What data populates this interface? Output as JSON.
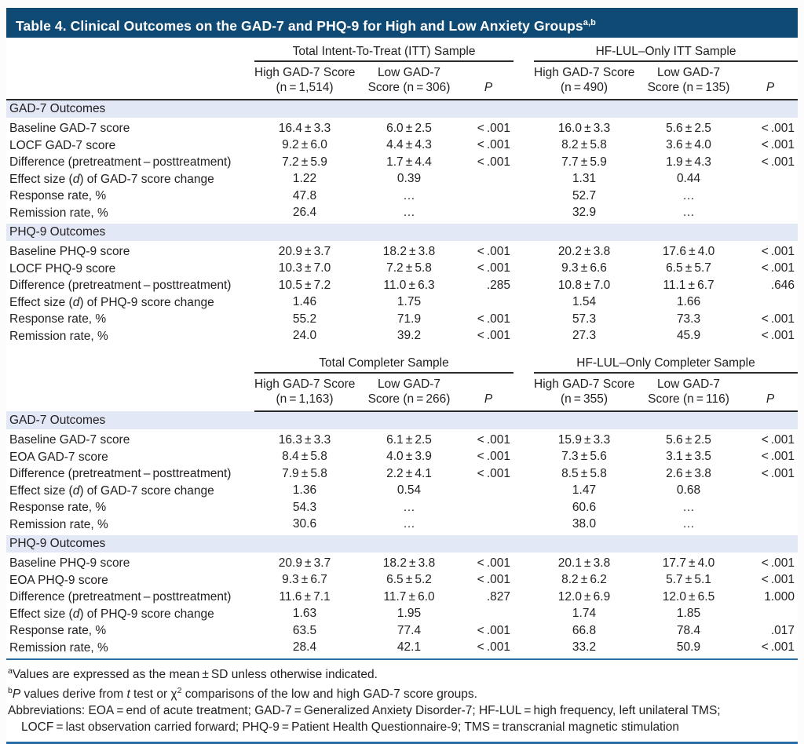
{
  "title": {
    "text": "Table 4. Clinical Outcomes on the GAD-7 and PHQ-9 for High and Low Anxiety Groups",
    "sup": "a,b"
  },
  "colors": {
    "title_bar": "#0f4a75",
    "section_band": "#e3e8f6",
    "rule_dark": "#2b2b2b",
    "rule_blue": "#2a6ca5",
    "text": "#231f20"
  },
  "panels": [
    {
      "groups": [
        "Total Intent-To-Treat (ITT) Sample",
        "HF-LUL–Only ITT Sample"
      ],
      "columns": [
        {
          "line1": "High GAD-7 Score",
          "line2": "(n = 1,514)"
        },
        {
          "line1": "Low GAD-7",
          "line2": "Score (n = 306)"
        },
        {
          "line1": "P",
          "line2": ""
        },
        {
          "line1": "High GAD-7 Score",
          "line2": "(n = 490)"
        },
        {
          "line1": "Low GAD-7",
          "line2": "Score (n = 135)"
        },
        {
          "line1": "P",
          "line2": ""
        }
      ],
      "sections": [
        {
          "header": "GAD-7 Outcomes",
          "rows": [
            {
              "label": "Baseline GAD-7 score",
              "values": [
                "16.4 ± 3.3",
                "6.0 ± 2.5",
                "< .001",
                "16.0 ± 3.3",
                "5.6 ± 2.5",
                "< .001"
              ]
            },
            {
              "label": "LOCF GAD-7 score",
              "values": [
                "9.2 ± 6.0",
                "4.4 ± 4.3",
                "< .001",
                "8.2 ± 5.8",
                "3.6 ± 4.0",
                "< .001"
              ]
            },
            {
              "label": "Difference (pretreatment – posttreatment)",
              "values": [
                "7.2 ± 5.9",
                "1.7 ± 4.4",
                "< .001",
                "7.7 ± 5.9",
                "1.9 ± 4.3",
                "< .001"
              ]
            },
            {
              "label": "Effect size (d) of GAD-7 score change",
              "values": [
                "1.22",
                "0.39",
                "",
                "1.31",
                "0.44",
                ""
              ]
            },
            {
              "label": "Response rate, %",
              "values": [
                "47.8",
                "…",
                "",
                "52.7",
                "…",
                ""
              ]
            },
            {
              "label": "Remission rate, %",
              "values": [
                "26.4",
                "…",
                "",
                "32.9",
                "…",
                ""
              ]
            }
          ]
        },
        {
          "header": "PHQ-9 Outcomes",
          "rows": [
            {
              "label": "Baseline PHQ-9 score",
              "values": [
                "20.9 ± 3.7",
                "18.2 ± 3.8",
                "< .001",
                "20.2 ± 3.8",
                "17.6 ± 4.0",
                "< .001"
              ]
            },
            {
              "label": "LOCF PHQ-9 score",
              "values": [
                "10.3 ± 7.0",
                "7.2 ± 5.8",
                "< .001",
                "9.3 ± 6.6",
                "6.5 ± 5.7",
                "< .001"
              ]
            },
            {
              "label": "Difference (pretreatment – posttreatment)",
              "values": [
                "10.5 ± 7.2",
                "11.0 ± 6.3",
                ".285",
                "10.8 ± 7.0",
                "11.1 ± 6.7",
                ".646"
              ]
            },
            {
              "label": "Effect size (d) of PHQ-9 score change",
              "values": [
                "1.46",
                "1.75",
                "",
                "1.54",
                "1.66",
                ""
              ]
            },
            {
              "label": "Response rate, %",
              "values": [
                "55.2",
                "71.9",
                "< .001",
                "57.3",
                "73.3",
                "< .001"
              ]
            },
            {
              "label": "Remission rate, %",
              "values": [
                "24.0",
                "39.2",
                "< .001",
                "27.3",
                "45.9",
                "< .001"
              ]
            }
          ]
        }
      ]
    },
    {
      "groups": [
        "Total Completer Sample",
        "HF-LUL–Only Completer Sample"
      ],
      "columns": [
        {
          "line1": "High GAD-7 Score",
          "line2": "(n = 1,163)"
        },
        {
          "line1": "Low GAD-7",
          "line2": "Score (n = 266)"
        },
        {
          "line1": "P",
          "line2": ""
        },
        {
          "line1": "High GAD-7 Score",
          "line2": "(n = 355)"
        },
        {
          "line1": "Low GAD-7",
          "line2": "Score (n = 116)"
        },
        {
          "line1": "P",
          "line2": ""
        }
      ],
      "sections": [
        {
          "header": "GAD-7 Outcomes",
          "rows": [
            {
              "label": "Baseline GAD-7 score",
              "values": [
                "16.3 ± 3.3",
                "6.1 ± 2.5",
                "< .001",
                "15.9 ± 3.3",
                "5.6 ± 2.5",
                "< .001"
              ]
            },
            {
              "label": "EOA GAD-7 score",
              "values": [
                "8.4 ± 5.8",
                "4.0 ± 3.9",
                "< .001",
                "7.3 ± 5.6",
                "3.1 ± 3.5",
                "< .001"
              ]
            },
            {
              "label": "Difference (pretreatment – posttreatment)",
              "values": [
                "7.9 ± 5.8",
                "2.2 ± 4.1",
                "< .001",
                "8.5 ± 5.8",
                "2.6 ± 3.8",
                "< .001"
              ]
            },
            {
              "label": "Effect size (d) of GAD-7 score change",
              "values": [
                "1.36",
                "0.54",
                "",
                "1.47",
                "0.68",
                ""
              ]
            },
            {
              "label": "Response rate, %",
              "values": [
                "54.3",
                "…",
                "",
                "60.6",
                "…",
                ""
              ]
            },
            {
              "label": "Remission rate, %",
              "values": [
                "30.6",
                "…",
                "",
                "38.0",
                "…",
                ""
              ]
            }
          ]
        },
        {
          "header": "PHQ-9 Outcomes",
          "rows": [
            {
              "label": "Baseline PHQ-9 score",
              "values": [
                "20.9 ± 3.7",
                "18.2 ± 3.8",
                "< .001",
                "20.1 ± 3.8",
                "17.7 ± 4.0",
                "< .001"
              ]
            },
            {
              "label": "EOA PHQ-9 score",
              "values": [
                "9.3 ± 6.7",
                "6.5 ± 5.2",
                "< .001",
                "8.2 ± 6.2",
                "5.7 ± 5.1",
                "< .001"
              ]
            },
            {
              "label": "Difference (pretreatment – posttreatment)",
              "values": [
                "11.6 ± 7.1",
                "11.7 ± 6.0",
                ".827",
                "12.0 ± 6.9",
                "12.0 ± 6.5",
                "1.000"
              ]
            },
            {
              "label": "Effect size (d) of PHQ-9 score change",
              "values": [
                "1.63",
                "1.95",
                "",
                "1.74",
                "1.85",
                ""
              ]
            },
            {
              "label": "Response rate, %",
              "values": [
                "63.5",
                "77.4",
                "< .001",
                "66.8",
                "78.4",
                ".017"
              ]
            },
            {
              "label": "Remission rate, %",
              "values": [
                "28.4",
                "42.1",
                "< .001",
                "33.2",
                "50.9",
                "< .001"
              ]
            }
          ]
        }
      ]
    }
  ],
  "footnotes": [
    {
      "indent": false,
      "segments": [
        {
          "s": "sup",
          "v": "a"
        },
        {
          "s": "",
          "v": "Values are expressed as the mean ± SD unless otherwise indicated."
        }
      ]
    },
    {
      "indent": false,
      "segments": [
        {
          "s": "sup",
          "v": "b"
        },
        {
          "s": "i",
          "v": "P"
        },
        {
          "s": "",
          "v": " values derive from "
        },
        {
          "s": "i",
          "v": "t"
        },
        {
          "s": "",
          "v": " test or χ"
        },
        {
          "s": "sup",
          "v": "2"
        },
        {
          "s": "",
          "v": " comparisons of the low and high GAD-7 score groups."
        }
      ]
    },
    {
      "indent": false,
      "segments": [
        {
          "s": "",
          "v": "Abbreviations: EOA = end of acute treatment; GAD-7 = Generalized Anxiety Disorder-7; HF-LUL = high frequency, left unilateral TMS;"
        }
      ]
    },
    {
      "indent": true,
      "segments": [
        {
          "s": "",
          "v": "LOCF = last observation carried forward; PHQ-9 = Patient Health Questionnaire-9; TMS = transcranial magnetic stimulation"
        }
      ]
    }
  ]
}
